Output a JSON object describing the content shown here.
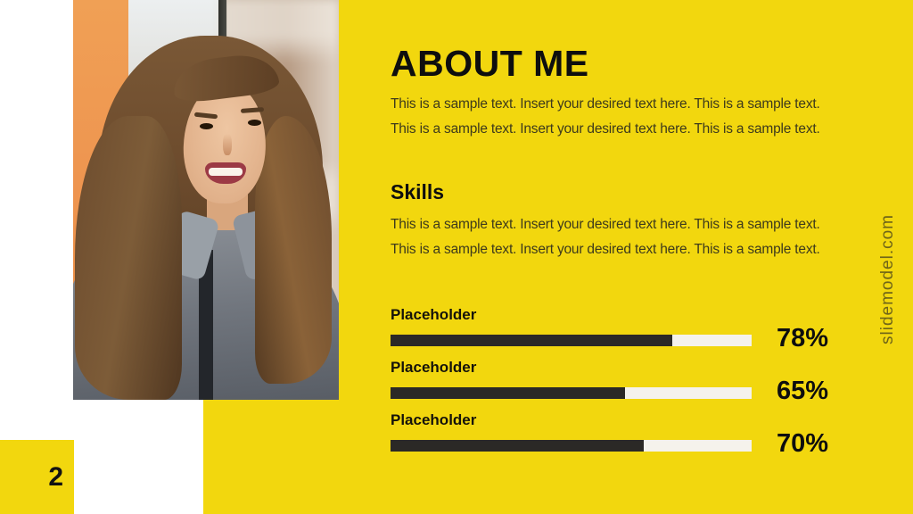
{
  "title": "ABOUT ME",
  "intro_text": "This is a sample text. Insert your desired text here. This is a sample text. This is a sample text. Insert your desired text here. This is a sample text.",
  "skills": {
    "heading": "Skills",
    "description": "This is a sample text. Insert your desired text here. This is a sample text. This is a sample text. Insert your desired text here. This is a sample text.",
    "bars": [
      {
        "label": "Placeholder",
        "percent": 78,
        "percent_label": "78%"
      },
      {
        "label": "Placeholder",
        "percent": 65,
        "percent_label": "65%"
      },
      {
        "label": "Placeholder",
        "percent": 70,
        "percent_label": "70%"
      }
    ]
  },
  "page_number": "2",
  "watermark": "slidemodel.com",
  "photo": {
    "alt": "smiling woman with long brown hair in gray blazer, orange wall and blurred window behind"
  },
  "colors": {
    "accent_yellow": "#F2D70E",
    "bar_fill": "#2B2926",
    "bar_track": "#F5F2EC",
    "body_text": "#3D3A1C",
    "heading_text": "#0E0E0E",
    "watermark_text": "#6F6518"
  }
}
